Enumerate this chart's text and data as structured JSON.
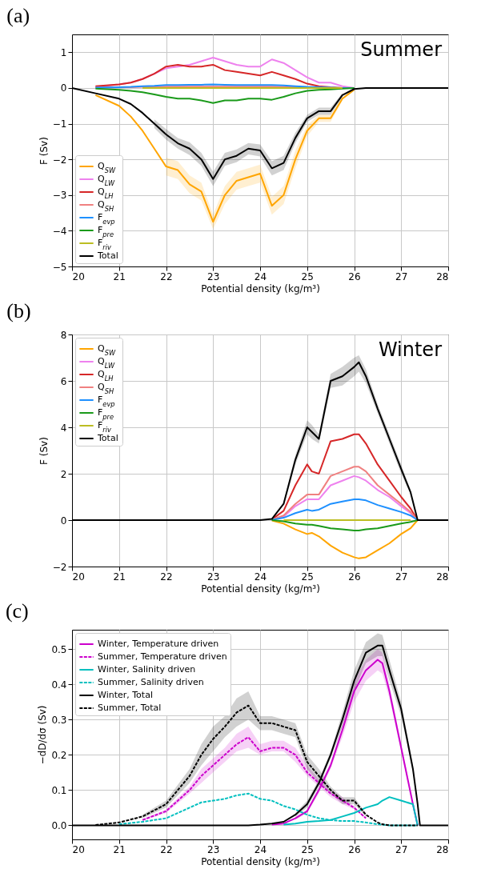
{
  "chart_data": [
    {
      "type": "line",
      "title": "(a)",
      "xlabel": "Potential density (kg/m³)",
      "ylabel": "F (Sv)",
      "annotations": [
        "Summer"
      ],
      "x": [
        20,
        20.5,
        21,
        21.25,
        21.5,
        21.75,
        22,
        22.25,
        22.5,
        22.75,
        23,
        23.25,
        23.5,
        23.75,
        24,
        24.25,
        24.5,
        24.75,
        25,
        25.25,
        25.5,
        25.75,
        26,
        26.25,
        26.5,
        27,
        28
      ],
      "xlim": [
        20,
        28
      ],
      "xticks": [
        20,
        21,
        22,
        23,
        24,
        25,
        26,
        27,
        28
      ],
      "ylim": [
        -5,
        1.5
      ],
      "yticks": [
        -5,
        -4,
        -3,
        -2,
        -1,
        0,
        1
      ],
      "grid": true,
      "legend": "bottom left",
      "series": [
        {
          "name": "Q$_{SW}$",
          "color": "#ffa500",
          "values": [
            null,
            -0.2,
            -0.5,
            -0.8,
            -1.2,
            -1.7,
            -2.2,
            -2.3,
            -2.7,
            -2.9,
            -3.75,
            -3.0,
            -2.6,
            -2.5,
            -2.4,
            -3.3,
            -3.0,
            -2.0,
            -1.2,
            -0.85,
            -0.85,
            -0.3,
            -0.05,
            null,
            null,
            null,
            null
          ],
          "lower": [
            null,
            null,
            null,
            null,
            null,
            null,
            -2.45,
            -2.55,
            -2.95,
            -3.15,
            -3.95,
            -3.25,
            -2.85,
            -2.75,
            -2.65,
            -3.55,
            -3.25,
            -2.25,
            -1.35,
            -0.95,
            -0.95,
            -0.35,
            null,
            null,
            null,
            null,
            null
          ],
          "upper": [
            null,
            null,
            null,
            null,
            null,
            null,
            -1.95,
            -2.05,
            -2.45,
            -2.65,
            -3.55,
            -2.75,
            -2.35,
            -2.25,
            -2.15,
            -3.05,
            -2.75,
            -1.75,
            -1.05,
            -0.75,
            -0.75,
            -0.25,
            null,
            null,
            null,
            null,
            null
          ]
        },
        {
          "name": "Q$_{LW}$",
          "color": "#ee82ee",
          "values": [
            null,
            0.03,
            0.1,
            0.15,
            0.25,
            0.4,
            0.55,
            0.6,
            0.65,
            0.75,
            0.85,
            0.75,
            0.65,
            0.6,
            0.6,
            0.8,
            0.7,
            0.5,
            0.3,
            0.15,
            0.15,
            0.05,
            0,
            null,
            null,
            null,
            null
          ]
        },
        {
          "name": "Q$_{LH}$",
          "color": "#d62728",
          "values": [
            null,
            0.05,
            0.1,
            0.15,
            0.25,
            0.4,
            0.6,
            0.65,
            0.6,
            0.6,
            0.65,
            0.5,
            0.45,
            0.4,
            0.35,
            0.45,
            0.35,
            0.25,
            0.12,
            0.05,
            0.02,
            0,
            0,
            null,
            null,
            null,
            null
          ]
        },
        {
          "name": "Q$_{SH}$",
          "color": "#f08080",
          "values": [
            null,
            0.01,
            0.02,
            0.02,
            0.03,
            0.03,
            0.04,
            0.04,
            0.04,
            0.04,
            0.04,
            0.04,
            0.04,
            0.04,
            0.04,
            0.04,
            0.03,
            0.03,
            0.02,
            0.01,
            0.01,
            0,
            0,
            null,
            null,
            null,
            null
          ]
        },
        {
          "name": "F$_{evp}$",
          "color": "#1e90ff",
          "values": [
            null,
            0.01,
            0.02,
            0.03,
            0.05,
            0.06,
            0.08,
            0.08,
            0.09,
            0.09,
            0.1,
            0.09,
            0.08,
            0.08,
            0.08,
            0.08,
            0.07,
            0.05,
            0.03,
            0.02,
            0.01,
            0,
            0,
            null,
            null,
            null,
            null
          ]
        },
        {
          "name": "F$_{pre}$",
          "color": "#1a9a1a",
          "values": [
            null,
            -0.02,
            -0.05,
            -0.08,
            -0.12,
            -0.18,
            -0.25,
            -0.3,
            -0.3,
            -0.35,
            -0.42,
            -0.35,
            -0.35,
            -0.3,
            -0.3,
            -0.33,
            -0.25,
            -0.15,
            -0.08,
            -0.05,
            -0.04,
            -0.02,
            0,
            null,
            null,
            null,
            null
          ]
        },
        {
          "name": "F$_{riv}$",
          "color": "#bcbd22",
          "values": [
            null,
            null,
            null,
            null,
            0,
            0,
            0,
            0,
            0,
            0,
            0,
            0,
            0,
            0,
            0,
            0,
            0,
            0,
            0,
            0,
            0,
            0,
            null,
            null,
            null,
            null,
            null
          ]
        },
        {
          "name": "Total",
          "color": "#000000",
          "values": [
            0,
            -0.15,
            -0.3,
            -0.45,
            -0.7,
            -1.0,
            -1.3,
            -1.55,
            -1.7,
            -2.0,
            -2.55,
            -2.0,
            -1.9,
            -1.7,
            -1.75,
            -2.25,
            -2.1,
            -1.4,
            -0.85,
            -0.65,
            -0.65,
            -0.2,
            -0.03,
            0,
            0,
            0,
            0
          ],
          "lower": [
            null,
            null,
            null,
            null,
            null,
            -1.12,
            -1.45,
            -1.7,
            -1.88,
            -2.18,
            -2.75,
            -2.18,
            -2.08,
            -1.86,
            -1.92,
            -2.45,
            -2.3,
            -1.55,
            -0.95,
            -0.75,
            -0.75,
            -0.25,
            null,
            null,
            null,
            null,
            null
          ],
          "upper": [
            null,
            null,
            null,
            null,
            null,
            -0.88,
            -1.15,
            -1.4,
            -1.52,
            -1.82,
            -2.35,
            -1.82,
            -1.72,
            -1.54,
            -1.58,
            -2.05,
            -1.9,
            -1.25,
            -0.75,
            -0.55,
            -0.55,
            -0.15,
            null,
            null,
            null,
            null,
            null
          ]
        }
      ]
    },
    {
      "type": "line",
      "title": "(b)",
      "xlabel": "Potential density (kg/m³)",
      "ylabel": "F (Sv)",
      "annotations": [
        "Winter"
      ],
      "x": [
        20,
        24,
        24.25,
        24.5,
        24.75,
        25,
        25.1,
        25.25,
        25.5,
        25.75,
        26,
        26.1,
        26.25,
        26.5,
        26.75,
        27,
        27.2,
        27.35,
        28
      ],
      "xlim": [
        20,
        28
      ],
      "xticks": [
        20,
        21,
        22,
        23,
        24,
        25,
        26,
        27,
        28
      ],
      "ylim": [
        -2,
        8
      ],
      "yticks": [
        -2,
        0,
        2,
        4,
        6,
        8
      ],
      "grid": true,
      "legend": "top left",
      "series": [
        {
          "name": "Q$_{SW}$",
          "color": "#ffa500",
          "values": [
            null,
            null,
            -0.02,
            -0.15,
            -0.4,
            -0.6,
            -0.55,
            -0.7,
            -1.1,
            -1.4,
            -1.6,
            -1.65,
            -1.6,
            -1.3,
            -1.0,
            -0.6,
            -0.35,
            0,
            null
          ]
        },
        {
          "name": "Q$_{LW}$",
          "color": "#ee82ee",
          "values": [
            null,
            null,
            0.02,
            0.15,
            0.6,
            0.9,
            0.9,
            0.9,
            1.5,
            1.7,
            1.9,
            1.85,
            1.7,
            1.3,
            1.0,
            0.6,
            0.3,
            0,
            null
          ]
        },
        {
          "name": "Q$_{LH}$",
          "color": "#d62728",
          "values": [
            null,
            null,
            0.03,
            0.4,
            1.5,
            2.4,
            2.1,
            2.0,
            3.4,
            3.5,
            3.7,
            3.7,
            3.3,
            2.4,
            1.7,
            1.0,
            0.5,
            0,
            null
          ]
        },
        {
          "name": "Q$_{SH}$",
          "color": "#f08080",
          "values": [
            null,
            null,
            0.02,
            0.2,
            0.7,
            1.1,
            1.1,
            1.1,
            1.9,
            2.1,
            2.3,
            2.3,
            2.1,
            1.5,
            1.1,
            0.7,
            0.35,
            0,
            null
          ]
        },
        {
          "name": "F$_{evp}$",
          "color": "#1e90ff",
          "values": [
            null,
            null,
            0.01,
            0.1,
            0.3,
            0.45,
            0.4,
            0.45,
            0.7,
            0.8,
            0.9,
            0.9,
            0.85,
            0.65,
            0.5,
            0.35,
            0.2,
            0,
            null
          ]
        },
        {
          "name": "F$_{pre}$",
          "color": "#1a9a1a",
          "values": [
            null,
            null,
            0,
            -0.05,
            -0.15,
            -0.2,
            -0.2,
            -0.25,
            -0.35,
            -0.4,
            -0.45,
            -0.45,
            -0.4,
            -0.35,
            -0.25,
            -0.15,
            -0.08,
            0,
            null
          ]
        },
        {
          "name": "F$_{riv}$",
          "color": "#bcbd22",
          "values": [
            null,
            null,
            null,
            0,
            0,
            0,
            0,
            0,
            0,
            0,
            0,
            0,
            0,
            0,
            0,
            0,
            0,
            null,
            null
          ]
        },
        {
          "name": "Total",
          "color": "#000000",
          "values": [
            0,
            0,
            0.05,
            0.7,
            2.6,
            4.0,
            3.8,
            3.5,
            6.0,
            6.2,
            6.6,
            6.8,
            6.2,
            4.8,
            3.5,
            2.2,
            1.2,
            0,
            0
          ],
          "lower": [
            null,
            null,
            null,
            0.6,
            2.4,
            3.7,
            3.5,
            3.3,
            5.7,
            5.8,
            6.2,
            6.4,
            5.9,
            4.6,
            3.3,
            2.0,
            1.1,
            null,
            null
          ],
          "upper": [
            null,
            null,
            null,
            0.8,
            2.8,
            4.3,
            4.1,
            3.7,
            6.3,
            6.6,
            7.0,
            7.1,
            6.5,
            5.0,
            3.7,
            2.4,
            1.3,
            null,
            null
          ]
        }
      ]
    },
    {
      "type": "line",
      "title": "(c)",
      "xlabel": "Potential density (kg/m³)",
      "ylabel": "−dD/dσ (Sv)",
      "x": [
        20,
        20.5,
        21,
        21.5,
        22,
        22.5,
        22.75,
        23,
        23.25,
        23.5,
        23.75,
        24,
        24.25,
        24.5,
        24.75,
        25,
        25.25,
        25.5,
        25.75,
        26,
        26.25,
        26.5,
        26.6,
        26.75,
        27,
        27.25,
        27.35,
        27.4,
        28
      ],
      "xlim": [
        20,
        28
      ],
      "xticks": [
        20,
        21,
        22,
        23,
        24,
        25,
        26,
        27,
        28
      ],
      "ylim": [
        -0.04,
        0.555
      ],
      "yticks": [
        {
          "value": 0,
          "label": "0.0"
        },
        0.1,
        0.2,
        0.3,
        0.4,
        0.5
      ],
      "grid": true,
      "legend": "top left",
      "series": [
        {
          "name": "Winter, Temperature driven",
          "color": "#cc00cc",
          "line_style": "solid",
          "values": [
            null,
            null,
            null,
            null,
            null,
            null,
            null,
            null,
            null,
            null,
            null,
            null,
            0.002,
            0.005,
            0.02,
            0.04,
            0.1,
            0.17,
            0.27,
            0.38,
            0.44,
            0.47,
            0.46,
            0.38,
            0.22,
            0.06,
            0,
            null,
            null
          ],
          "lower": [
            null,
            null,
            null,
            null,
            null,
            null,
            null,
            null,
            null,
            null,
            null,
            null,
            null,
            null,
            0.015,
            0.035,
            0.09,
            0.16,
            0.25,
            0.35,
            0.41,
            0.44,
            0.43,
            0.36,
            0.21,
            0.055,
            null,
            null,
            null
          ],
          "upper": [
            null,
            null,
            null,
            null,
            null,
            null,
            null,
            null,
            null,
            null,
            null,
            null,
            null,
            null,
            0.025,
            0.045,
            0.11,
            0.18,
            0.29,
            0.41,
            0.47,
            0.5,
            0.49,
            0.4,
            0.23,
            0.065,
            null,
            null,
            null
          ]
        },
        {
          "name": "Summer, Temperature driven",
          "color": "#cc00cc",
          "line_style": "dashed",
          "values": [
            null,
            null,
            null,
            0.015,
            0.04,
            0.1,
            0.14,
            0.17,
            0.2,
            0.23,
            0.25,
            0.21,
            0.22,
            0.22,
            0.2,
            0.15,
            0.12,
            0.09,
            0.07,
            0.05,
            0.02,
            null,
            null,
            null,
            null,
            null,
            null,
            null,
            null
          ],
          "lower": [
            null,
            null,
            null,
            0.012,
            0.035,
            0.09,
            0.12,
            0.15,
            0.18,
            0.21,
            0.22,
            0.2,
            0.21,
            0.21,
            0.18,
            0.14,
            0.11,
            0.08,
            0.06,
            0.045,
            0.018,
            null,
            null,
            null,
            null,
            null,
            null,
            null,
            null
          ],
          "upper": [
            null,
            null,
            null,
            0.018,
            0.045,
            0.11,
            0.16,
            0.19,
            0.22,
            0.26,
            0.28,
            0.23,
            0.24,
            0.24,
            0.22,
            0.17,
            0.13,
            0.1,
            0.08,
            0.055,
            0.022,
            null,
            null,
            null,
            null,
            null,
            null,
            null,
            null
          ]
        },
        {
          "name": "Winter, Salinity driven",
          "color": "#00bfbf",
          "line_style": "solid",
          "values": [
            null,
            null,
            null,
            null,
            null,
            null,
            null,
            null,
            null,
            null,
            null,
            null,
            null,
            0.002,
            0.005,
            0.01,
            0.012,
            0.015,
            0.025,
            0.035,
            0.05,
            0.06,
            0.07,
            0.08,
            0.07,
            0.06,
            0,
            null,
            null
          ]
        },
        {
          "name": "Summer, Salinity driven",
          "color": "#00bfbf",
          "line_style": "dashed",
          "values": [
            null,
            null,
            0.003,
            0.01,
            0.02,
            0.05,
            0.065,
            0.07,
            0.075,
            0.085,
            0.09,
            0.075,
            0.07,
            0.055,
            0.045,
            0.03,
            0.02,
            0.015,
            0.012,
            0.012,
            0.008,
            0.003,
            0.002,
            0,
            0,
            0,
            0,
            null,
            null
          ]
        },
        {
          "name": "Winter, Total",
          "color": "#000000",
          "line_style": "solid",
          "values": [
            0,
            0,
            0,
            0,
            0,
            0,
            0,
            0,
            0,
            0,
            0,
            0.002,
            0.005,
            0.01,
            0.03,
            0.06,
            0.12,
            0.2,
            0.3,
            0.41,
            0.49,
            0.51,
            0.51,
            0.44,
            0.33,
            0.16,
            0.06,
            0,
            0
          ],
          "lower": [
            null,
            null,
            null,
            null,
            null,
            null,
            null,
            null,
            null,
            null,
            null,
            null,
            null,
            null,
            0.025,
            0.05,
            0.11,
            0.19,
            0.28,
            0.38,
            0.46,
            0.48,
            0.48,
            0.41,
            0.31,
            0.15,
            null,
            null,
            null
          ],
          "upper": [
            null,
            null,
            null,
            null,
            null,
            null,
            null,
            null,
            null,
            null,
            null,
            null,
            null,
            null,
            0.035,
            0.07,
            0.13,
            0.21,
            0.32,
            0.44,
            0.52,
            0.545,
            0.54,
            0.47,
            0.35,
            0.17,
            null,
            null,
            null
          ]
        },
        {
          "name": "Summer, Total",
          "color": "#000000",
          "line_style": "dashed",
          "values": [
            null,
            0.001,
            0.008,
            0.025,
            0.06,
            0.14,
            0.2,
            0.245,
            0.28,
            0.32,
            0.34,
            0.29,
            0.29,
            0.28,
            0.27,
            0.18,
            0.14,
            0.1,
            0.07,
            0.07,
            0.03,
            0.008,
            0.003,
            0,
            0,
            0,
            0,
            null,
            null
          ],
          "lower": [
            null,
            null,
            null,
            0.02,
            0.05,
            0.12,
            0.17,
            0.21,
            0.25,
            0.28,
            0.3,
            0.27,
            0.27,
            0.26,
            0.25,
            0.16,
            0.12,
            0.09,
            0.06,
            0.06,
            0.025,
            null,
            null,
            null,
            null,
            null,
            null,
            null,
            null
          ],
          "upper": [
            null,
            null,
            null,
            0.03,
            0.07,
            0.16,
            0.23,
            0.28,
            0.31,
            0.36,
            0.38,
            0.31,
            0.31,
            0.3,
            0.29,
            0.2,
            0.16,
            0.11,
            0.08,
            0.08,
            0.035,
            null,
            null,
            null,
            null,
            null,
            null,
            null,
            null
          ]
        }
      ]
    }
  ]
}
